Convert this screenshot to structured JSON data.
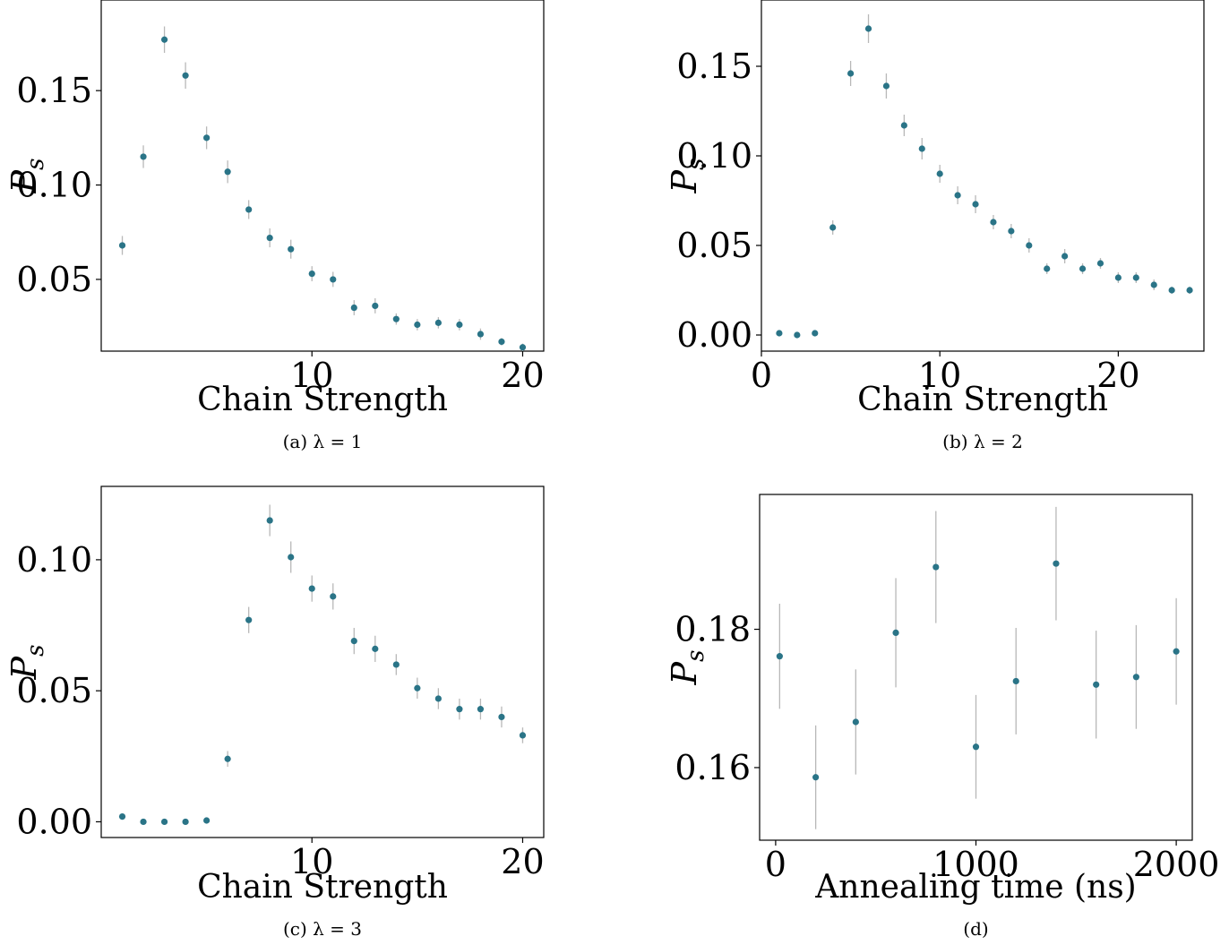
{
  "colors": {
    "marker": "#2a7487",
    "errorbar": "#b8b8b8",
    "axes": "#000000"
  },
  "ylabel_main": "P",
  "ylabel_sub": "s",
  "chart_data": [
    {
      "type": "scatter",
      "caption": "(a) λ = 1",
      "xlabel": "Chain Strength",
      "xlim": [
        0,
        21
      ],
      "ylim": [
        0.012,
        0.198
      ],
      "xticks": [
        10,
        20
      ],
      "xtick_labels": [
        "10",
        "20"
      ],
      "yticks": [
        0.05,
        0.1,
        0.15
      ],
      "ytick_labels": [
        "0.05",
        "0.10",
        "0.15"
      ],
      "x": [
        1,
        2,
        3,
        4,
        5,
        6,
        7,
        8,
        9,
        10,
        11,
        12,
        13,
        14,
        15,
        16,
        17,
        18,
        19,
        20
      ],
      "y": [
        0.068,
        0.115,
        0.177,
        0.158,
        0.125,
        0.107,
        0.087,
        0.072,
        0.066,
        0.053,
        0.05,
        0.035,
        0.036,
        0.029,
        0.026,
        0.027,
        0.026,
        0.021,
        0.017,
        0.014
      ],
      "err": [
        0.005,
        0.006,
        0.007,
        0.007,
        0.006,
        0.006,
        0.005,
        0.005,
        0.005,
        0.004,
        0.004,
        0.004,
        0.004,
        0.003,
        0.003,
        0.003,
        0.003,
        0.003,
        0.002,
        0.002
      ]
    },
    {
      "type": "scatter",
      "caption": "(b) λ = 2",
      "xlabel": "Chain Strength",
      "xlim": [
        0,
        24.8
      ],
      "ylim": [
        -0.009,
        0.187
      ],
      "xticks": [
        0,
        10,
        20
      ],
      "xtick_labels": [
        "0",
        "10",
        "20"
      ],
      "yticks": [
        0.0,
        0.05,
        0.1,
        0.15
      ],
      "ytick_labels": [
        "0.00",
        "0.05",
        "0.10",
        "0.15"
      ],
      "x": [
        1,
        2,
        3,
        4,
        5,
        6,
        7,
        8,
        9,
        10,
        11,
        12,
        13,
        14,
        15,
        16,
        17,
        18,
        19,
        20,
        21,
        22,
        23,
        24
      ],
      "y": [
        0.001,
        0.0,
        0.001,
        0.06,
        0.146,
        0.171,
        0.139,
        0.117,
        0.104,
        0.09,
        0.078,
        0.073,
        0.063,
        0.058,
        0.05,
        0.037,
        0.044,
        0.037,
        0.04,
        0.032,
        0.032,
        0.028,
        0.025,
        0.025
      ],
      "err": [
        0.001,
        0.001,
        0.001,
        0.004,
        0.007,
        0.008,
        0.007,
        0.006,
        0.006,
        0.005,
        0.005,
        0.005,
        0.004,
        0.004,
        0.004,
        0.003,
        0.004,
        0.003,
        0.003,
        0.003,
        0.003,
        0.003,
        0.002,
        0.002
      ]
    },
    {
      "type": "scatter",
      "caption": "(c) λ = 3",
      "xlabel": "Chain Strength",
      "xlim": [
        0,
        21
      ],
      "ylim": [
        -0.006,
        0.128
      ],
      "xticks": [
        10,
        20
      ],
      "xtick_labels": [
        "10",
        "20"
      ],
      "yticks": [
        0.0,
        0.05,
        0.1
      ],
      "ytick_labels": [
        "0.00",
        "0.05",
        "0.10"
      ],
      "x": [
        1,
        2,
        3,
        4,
        5,
        6,
        7,
        8,
        9,
        10,
        11,
        12,
        13,
        14,
        15,
        16,
        17,
        18,
        19,
        20
      ],
      "y": [
        0.002,
        0.0,
        0.0,
        0.0,
        0.0005,
        0.024,
        0.077,
        0.115,
        0.101,
        0.089,
        0.086,
        0.069,
        0.066,
        0.06,
        0.051,
        0.047,
        0.043,
        0.043,
        0.04,
        0.033
      ],
      "err": [
        0.0005,
        0.0005,
        0.0005,
        0.0005,
        0.0005,
        0.003,
        0.005,
        0.006,
        0.006,
        0.005,
        0.005,
        0.005,
        0.005,
        0.004,
        0.004,
        0.004,
        0.004,
        0.004,
        0.004,
        0.003
      ]
    },
    {
      "type": "scatter",
      "caption": "(d)",
      "xlabel": "Annealing time (ns)",
      "xlim": [
        -80,
        2080
      ],
      "ylim": [
        0.1495,
        0.1995
      ],
      "xticks": [
        0,
        1000,
        2000
      ],
      "xtick_labels": [
        "0",
        "1000",
        "2000"
      ],
      "yticks": [
        0.16,
        0.18
      ],
      "ytick_labels": [
        "0.16",
        "0.18"
      ],
      "x": [
        20,
        200,
        400,
        600,
        800,
        1000,
        1200,
        1400,
        1600,
        1800,
        2000
      ],
      "y": [
        0.1761,
        0.1586,
        0.1666,
        0.1795,
        0.189,
        0.163,
        0.1725,
        0.1895,
        0.172,
        0.1731,
        0.1768
      ],
      "err": [
        0.0076,
        0.0075,
        0.0076,
        0.0079,
        0.0081,
        0.0075,
        0.0077,
        0.0082,
        0.0078,
        0.0075,
        0.0077
      ]
    }
  ]
}
